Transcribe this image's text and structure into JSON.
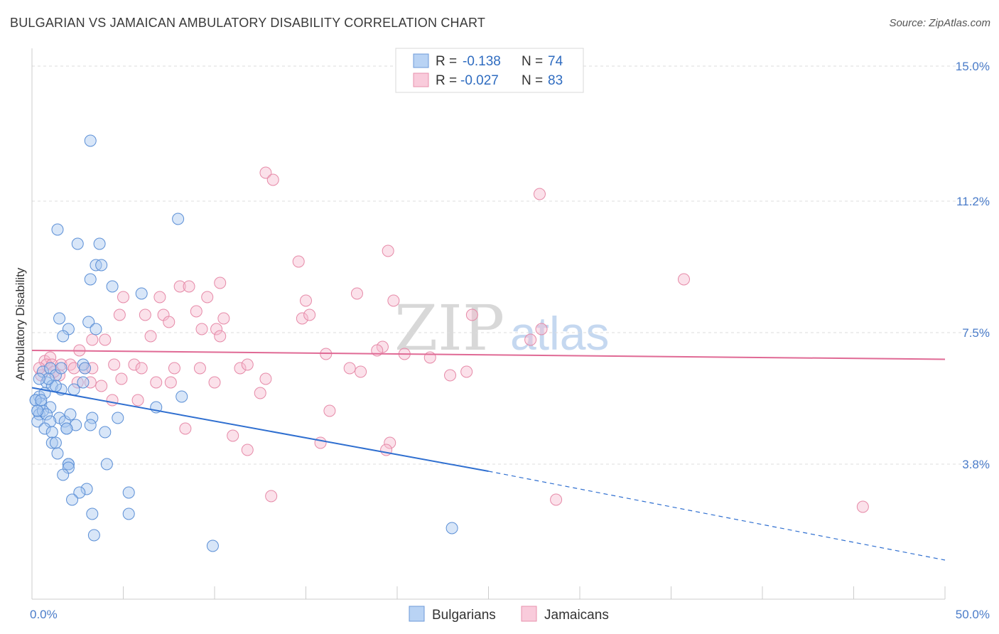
{
  "title": "BULGARIAN VS JAMAICAN AMBULATORY DISABILITY CORRELATION CHART",
  "source": "Source: ZipAtlas.com",
  "watermark": {
    "zip": "ZIP",
    "atlas": "atlas"
  },
  "legend": {
    "rows": [
      {
        "r_label": "R =",
        "r_value": "-0.138",
        "n_label": "N =",
        "n_value": "74"
      },
      {
        "r_label": "R =",
        "r_value": "-0.027",
        "n_label": "N =",
        "n_value": "83"
      }
    ]
  },
  "bottom_legend": [
    "Bulgarians",
    "Jamaicans"
  ],
  "colors": {
    "bulgarian_fill": "#a9c8f0",
    "bulgarian_stroke": "#5b8fd6",
    "bulgarian_line": "#2f6fd0",
    "jamaican_fill": "#f6bdd0",
    "jamaican_stroke": "#e68aa8",
    "jamaican_line": "#e06a95",
    "tick_text": "#4a7cc9",
    "grid": "#dddddd"
  },
  "chart_data": {
    "type": "scatter",
    "title": "BULGARIAN VS JAMAICAN AMBULATORY DISABILITY CORRELATION CHART",
    "xlabel": "",
    "ylabel": "Ambulatory Disability",
    "xlim": [
      0,
      50
    ],
    "ylim": [
      0,
      15.5
    ],
    "x_tick_labels": [
      "0.0%",
      "50.0%"
    ],
    "y_ticks": [
      3.8,
      7.5,
      11.2,
      15.0
    ],
    "y_tick_labels": [
      "3.8%",
      "7.5%",
      "11.2%",
      "15.0%"
    ],
    "series": [
      {
        "name": "Bulgarians",
        "R": -0.138,
        "N": 74,
        "trend": {
          "x0": 0,
          "y0": 5.95,
          "x1": 25,
          "y1": 3.6,
          "dash_x1": 50,
          "dash_y1": 1.1
        },
        "points": [
          [
            3.2,
            12.9
          ],
          [
            8.0,
            10.7
          ],
          [
            1.4,
            10.4
          ],
          [
            2.5,
            10.0
          ],
          [
            3.7,
            10.0
          ],
          [
            3.5,
            9.4
          ],
          [
            3.8,
            9.4
          ],
          [
            3.2,
            9.0
          ],
          [
            4.4,
            8.8
          ],
          [
            6.0,
            8.6
          ],
          [
            1.5,
            7.9
          ],
          [
            3.1,
            7.8
          ],
          [
            2.0,
            7.6
          ],
          [
            3.5,
            7.6
          ],
          [
            1.7,
            7.4
          ],
          [
            2.8,
            6.6
          ],
          [
            0.6,
            6.4
          ],
          [
            1.0,
            6.5
          ],
          [
            1.3,
            6.3
          ],
          [
            2.9,
            6.5
          ],
          [
            0.8,
            6.1
          ],
          [
            1.1,
            6.0
          ],
          [
            2.8,
            6.1
          ],
          [
            1.6,
            5.9
          ],
          [
            2.3,
            5.9
          ],
          [
            0.4,
            5.7
          ],
          [
            0.7,
            5.8
          ],
          [
            0.2,
            5.6
          ],
          [
            0.5,
            5.5
          ],
          [
            1.0,
            5.4
          ],
          [
            8.2,
            5.7
          ],
          [
            6.8,
            5.4
          ],
          [
            0.3,
            5.3
          ],
          [
            0.4,
            5.2
          ],
          [
            0.6,
            5.3
          ],
          [
            0.8,
            5.2
          ],
          [
            1.5,
            5.1
          ],
          [
            3.3,
            5.1
          ],
          [
            4.7,
            5.1
          ],
          [
            0.3,
            5.0
          ],
          [
            1.0,
            5.0
          ],
          [
            1.8,
            5.0
          ],
          [
            2.4,
            4.9
          ],
          [
            3.2,
            4.9
          ],
          [
            1.9,
            4.8
          ],
          [
            1.9,
            4.8
          ],
          [
            0.7,
            4.8
          ],
          [
            1.1,
            4.7
          ],
          [
            4.0,
            4.7
          ],
          [
            1.1,
            4.4
          ],
          [
            1.3,
            4.4
          ],
          [
            1.4,
            4.1
          ],
          [
            2.0,
            3.8
          ],
          [
            2.0,
            3.8
          ],
          [
            4.1,
            3.8
          ],
          [
            2.0,
            3.7
          ],
          [
            1.7,
            3.5
          ],
          [
            3.0,
            3.1
          ],
          [
            2.6,
            3.0
          ],
          [
            5.3,
            3.0
          ],
          [
            2.2,
            2.8
          ],
          [
            3.3,
            2.4
          ],
          [
            5.3,
            2.4
          ],
          [
            3.4,
            1.8
          ],
          [
            23.0,
            2.0
          ],
          [
            9.9,
            1.5
          ],
          [
            0.2,
            5.6
          ],
          [
            0.5,
            5.6
          ],
          [
            0.3,
            5.3
          ],
          [
            1.3,
            6.0
          ],
          [
            0.9,
            6.2
          ],
          [
            1.6,
            6.5
          ],
          [
            0.4,
            6.2
          ],
          [
            2.1,
            5.2
          ]
        ]
      },
      {
        "name": "Jamaicans",
        "R": -0.027,
        "N": 83,
        "trend": {
          "x0": 0,
          "y0": 7.0,
          "x1": 50,
          "y1": 6.75
        },
        "points": [
          [
            12.8,
            12.0
          ],
          [
            13.2,
            11.8
          ],
          [
            27.8,
            11.4
          ],
          [
            19.5,
            9.8
          ],
          [
            14.6,
            9.5
          ],
          [
            35.7,
            9.0
          ],
          [
            10.3,
            8.9
          ],
          [
            8.1,
            8.8
          ],
          [
            8.6,
            8.8
          ],
          [
            5.0,
            8.5
          ],
          [
            7.0,
            8.5
          ],
          [
            9.6,
            8.5
          ],
          [
            15.0,
            8.4
          ],
          [
            17.8,
            8.6
          ],
          [
            19.8,
            8.4
          ],
          [
            9.0,
            8.1
          ],
          [
            4.8,
            8.0
          ],
          [
            6.2,
            8.0
          ],
          [
            7.2,
            8.0
          ],
          [
            10.5,
            7.9
          ],
          [
            14.8,
            7.9
          ],
          [
            15.2,
            8.0
          ],
          [
            24.1,
            8.0
          ],
          [
            7.5,
            7.8
          ],
          [
            9.3,
            7.6
          ],
          [
            10.1,
            7.6
          ],
          [
            27.9,
            7.6
          ],
          [
            6.5,
            7.4
          ],
          [
            3.3,
            7.3
          ],
          [
            4.0,
            7.3
          ],
          [
            10.3,
            7.4
          ],
          [
            27.3,
            7.3
          ],
          [
            19.2,
            7.1
          ],
          [
            18.9,
            7.0
          ],
          [
            16.1,
            6.9
          ],
          [
            20.4,
            6.9
          ],
          [
            21.8,
            6.8
          ],
          [
            2.6,
            7.0
          ],
          [
            0.7,
            6.7
          ],
          [
            1.0,
            6.8
          ],
          [
            0.8,
            6.6
          ],
          [
            1.1,
            6.6
          ],
          [
            1.6,
            6.6
          ],
          [
            2.1,
            6.6
          ],
          [
            2.3,
            6.5
          ],
          [
            2.9,
            6.5
          ],
          [
            3.3,
            6.5
          ],
          [
            4.5,
            6.6
          ],
          [
            5.6,
            6.6
          ],
          [
            6.0,
            6.5
          ],
          [
            7.8,
            6.5
          ],
          [
            9.2,
            6.5
          ],
          [
            11.4,
            6.5
          ],
          [
            11.8,
            6.6
          ],
          [
            17.4,
            6.5
          ],
          [
            18.0,
            6.4
          ],
          [
            23.8,
            6.4
          ],
          [
            22.9,
            6.3
          ],
          [
            0.5,
            6.3
          ],
          [
            1.5,
            6.3
          ],
          [
            2.5,
            6.1
          ],
          [
            3.2,
            6.1
          ],
          [
            4.9,
            6.2
          ],
          [
            6.8,
            6.1
          ],
          [
            7.6,
            6.1
          ],
          [
            10.0,
            6.1
          ],
          [
            12.8,
            6.2
          ],
          [
            3.8,
            6.0
          ],
          [
            12.5,
            5.8
          ],
          [
            5.8,
            5.6
          ],
          [
            4.4,
            5.6
          ],
          [
            16.3,
            5.3
          ],
          [
            8.4,
            4.8
          ],
          [
            11.0,
            4.6
          ],
          [
            15.8,
            4.4
          ],
          [
            19.6,
            4.4
          ],
          [
            11.8,
            4.2
          ],
          [
            19.4,
            4.2
          ],
          [
            13.1,
            2.9
          ],
          [
            28.7,
            2.8
          ],
          [
            45.5,
            2.6
          ],
          [
            0.4,
            6.5
          ],
          [
            1.2,
            6.4
          ]
        ]
      }
    ]
  }
}
